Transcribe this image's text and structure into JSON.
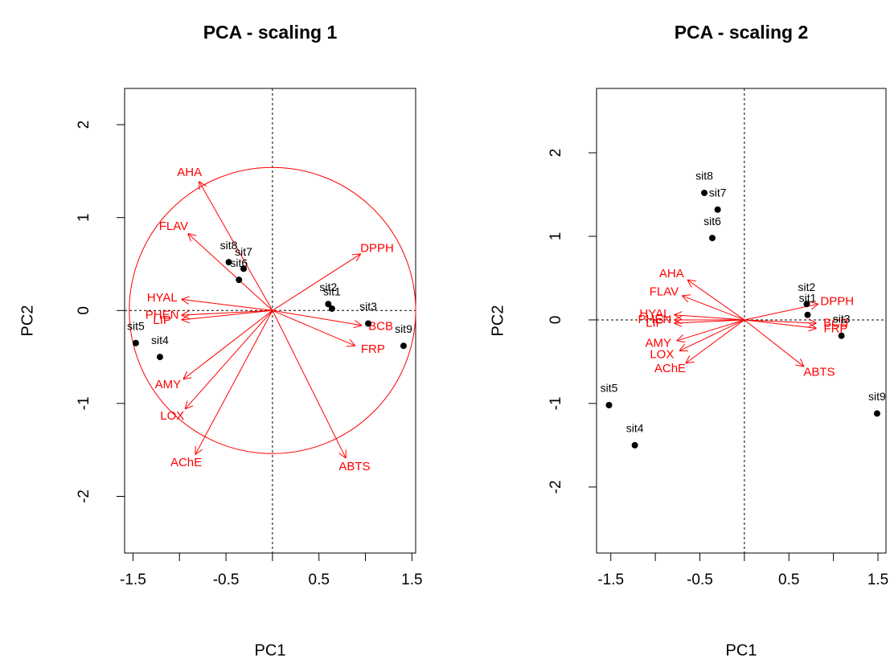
{
  "chart_data": [
    {
      "type": "biplot",
      "title": "PCA - scaling 1",
      "xlabel": "PC1",
      "ylabel": "PC2",
      "xlim": [
        -1.59,
        1.54
      ],
      "ylim": [
        -2.61,
        2.39
      ],
      "xticks": [
        -1.5,
        -0.5,
        0.5,
        1.5
      ],
      "xminor_ticks": [
        -1,
        0,
        1
      ],
      "yticks": [
        -2,
        -1,
        0,
        1,
        2
      ],
      "circle_radius": 1.54,
      "points": {
        "color": "#000000",
        "labels": [
          "sit5",
          "sit4",
          "sit8",
          "sit7",
          "sit6",
          "sit2",
          "sit1",
          "sit3",
          "sit9"
        ],
        "x": [
          -1.47,
          -1.21,
          -0.47,
          -0.31,
          -0.36,
          0.6,
          0.64,
          1.03,
          1.41
        ],
        "y": [
          -0.35,
          -0.5,
          0.52,
          0.45,
          0.33,
          0.07,
          0.02,
          -0.14,
          -0.38
        ]
      },
      "arrows": {
        "color": "#ff0000",
        "labels": [
          "AHA",
          "FLAV",
          "DPPH",
          "HYAL",
          "PHEN",
          "LIP",
          "BCB",
          "FRP",
          "AMY",
          "LOX",
          "AChE",
          "ABTS"
        ],
        "x": [
          -0.79,
          -0.91,
          0.95,
          -0.98,
          -0.98,
          -0.98,
          0.96,
          0.89,
          -0.96,
          -0.94,
          -0.83,
          0.79
        ],
        "y": [
          1.39,
          0.83,
          0.61,
          0.12,
          -0.05,
          -0.1,
          -0.16,
          -0.38,
          -0.74,
          -1.06,
          -1.55,
          -1.59
        ]
      }
    },
    {
      "type": "biplot",
      "title": "PCA - scaling 2",
      "xlabel": "PC1",
      "ylabel": "PC2",
      "xlim": [
        -1.66,
        1.59
      ],
      "ylim": [
        -2.79,
        2.77
      ],
      "xticks": [
        -1.5,
        -0.5,
        0.5,
        1.5
      ],
      "xminor_ticks": [
        -1,
        0,
        1
      ],
      "yticks": [
        -2,
        -1,
        0,
        1,
        2
      ],
      "points": {
        "color": "#000000",
        "labels": [
          "sit5",
          "sit4",
          "sit8",
          "sit7",
          "sit6",
          "sit2",
          "sit1",
          "sit3",
          "sit9"
        ],
        "x": [
          -1.52,
          -1.23,
          -0.45,
          -0.3,
          -0.36,
          0.7,
          0.71,
          1.09,
          1.49
        ],
        "y": [
          -1.02,
          -1.5,
          1.52,
          1.32,
          0.98,
          0.19,
          0.06,
          -0.19,
          -1.12
        ]
      },
      "arrows": {
        "color": "#ff0000",
        "labels": [
          "AHA",
          "FLAV",
          "DPPH",
          "HYAL",
          "PHEN",
          "LIP",
          "BCB",
          "FRP",
          "AMY",
          "LOX",
          "AChE",
          "ABTS"
        ],
        "x": [
          -0.64,
          -0.7,
          0.83,
          -0.79,
          -0.79,
          -0.79,
          0.81,
          0.81,
          -0.76,
          -0.73,
          -0.66,
          0.67
        ],
        "y": [
          0.48,
          0.29,
          0.19,
          0.06,
          0,
          -0.04,
          -0.04,
          -0.1,
          -0.25,
          -0.37,
          -0.52,
          -0.56
        ]
      }
    }
  ]
}
